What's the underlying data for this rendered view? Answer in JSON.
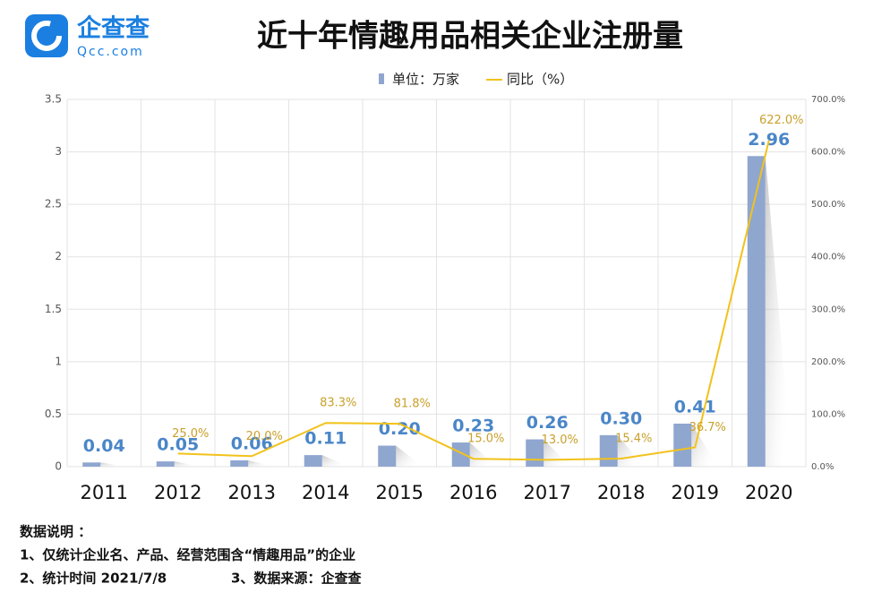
{
  "logo": {
    "name": "企查查",
    "url": "Qcc.com"
  },
  "chart_data": {
    "type": "bar-line",
    "title": "近十年情趣用品相关企业注册量",
    "categories": [
      "2011",
      "2012",
      "2013",
      "2014",
      "2015",
      "2016",
      "2017",
      "2018",
      "2019",
      "2020"
    ],
    "series": [
      {
        "name": "单位：万家",
        "type": "bar",
        "color": "#8fa6cf",
        "values": [
          0.04,
          0.05,
          0.06,
          0.11,
          0.2,
          0.23,
          0.26,
          0.3,
          0.41,
          2.96
        ],
        "value_labels": [
          "0.04",
          "0.05",
          "0.06",
          "0.11",
          "0.20",
          "0.23",
          "0.26",
          "0.30",
          "0.41",
          "2.96"
        ]
      },
      {
        "name": "同比（%）",
        "type": "line",
        "axis": "y2",
        "color": "#f2c21b",
        "values": [
          null,
          25.0,
          20.0,
          83.3,
          81.8,
          15.0,
          13.0,
          15.4,
          36.7,
          622.0
        ],
        "value_labels": [
          null,
          "25.0%",
          "20.0%",
          "83.3%",
          "81.8%",
          "15.0%",
          "13.0%",
          "15.4%",
          "36.7%",
          "622.0%"
        ]
      }
    ],
    "ylim": [
      0,
      3.5
    ],
    "yticks": [
      0,
      0.5,
      1,
      1.5,
      2,
      2.5,
      3,
      3.5
    ],
    "y2lim": [
      0,
      700
    ],
    "y2ticks": [
      {
        "value": 0,
        "label": "0.0%"
      },
      {
        "value": 100,
        "label": "100.0%"
      },
      {
        "value": 200,
        "label": "200.0%"
      },
      {
        "value": 300,
        "label": "300.0%"
      },
      {
        "value": 400,
        "label": "400.0%"
      },
      {
        "value": 500,
        "label": "500.0%"
      },
      {
        "value": 600,
        "label": "600.0%"
      },
      {
        "value": 700,
        "label": "700.0%"
      }
    ],
    "grid": true,
    "legend": "top"
  },
  "notes": [
    "数据说明 ：",
    "1、仅统计企业名、产品、经营范围含“情趣用品”的企业",
    "2、统计时间 2021/7/8",
    "3、数据来源：企查查"
  ]
}
